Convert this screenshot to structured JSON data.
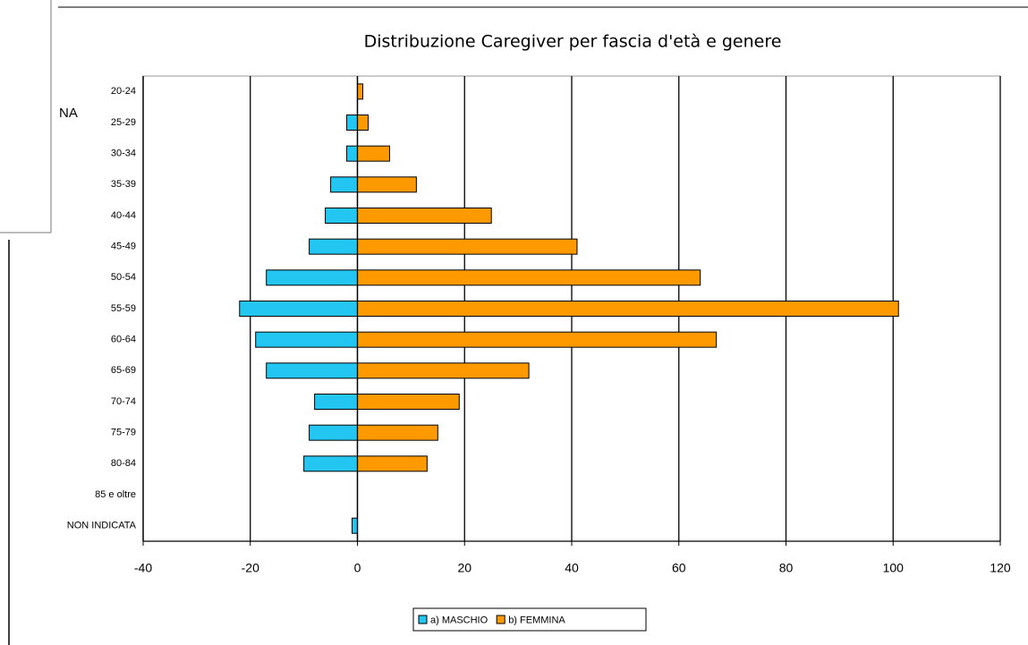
{
  "side_fragment": "NA",
  "chart_data": {
    "type": "bar",
    "orientation": "horizontal",
    "title": "Distribuzione Caregiver per fascia d'età e genere",
    "categories": [
      "20-24",
      "25-29",
      "30-34",
      "35-39",
      "40-44",
      "45-49",
      "50-54",
      "55-59",
      "60-64",
      "65-69",
      "70-74",
      "75-79",
      "80-84",
      "85 e oltre",
      "NON INDICATA"
    ],
    "series": [
      {
        "name": "a) MASCHIO",
        "color": "#22c6f0",
        "values": [
          null,
          -2,
          -2,
          -5,
          -6,
          -9,
          -17,
          -22,
          -19,
          -17,
          -8,
          -9,
          -10,
          null,
          -1
        ]
      },
      {
        "name": "b) FEMMINA",
        "color": "#ff9900",
        "values": [
          1,
          2,
          6,
          11,
          25,
          41,
          64,
          101,
          67,
          32,
          19,
          15,
          13,
          null,
          null
        ]
      }
    ],
    "xlim": [
      -40,
      120
    ],
    "xticks": [
      -40,
      -20,
      0,
      20,
      40,
      60,
      80,
      100,
      120
    ],
    "grid": true,
    "legend": "bottom"
  }
}
